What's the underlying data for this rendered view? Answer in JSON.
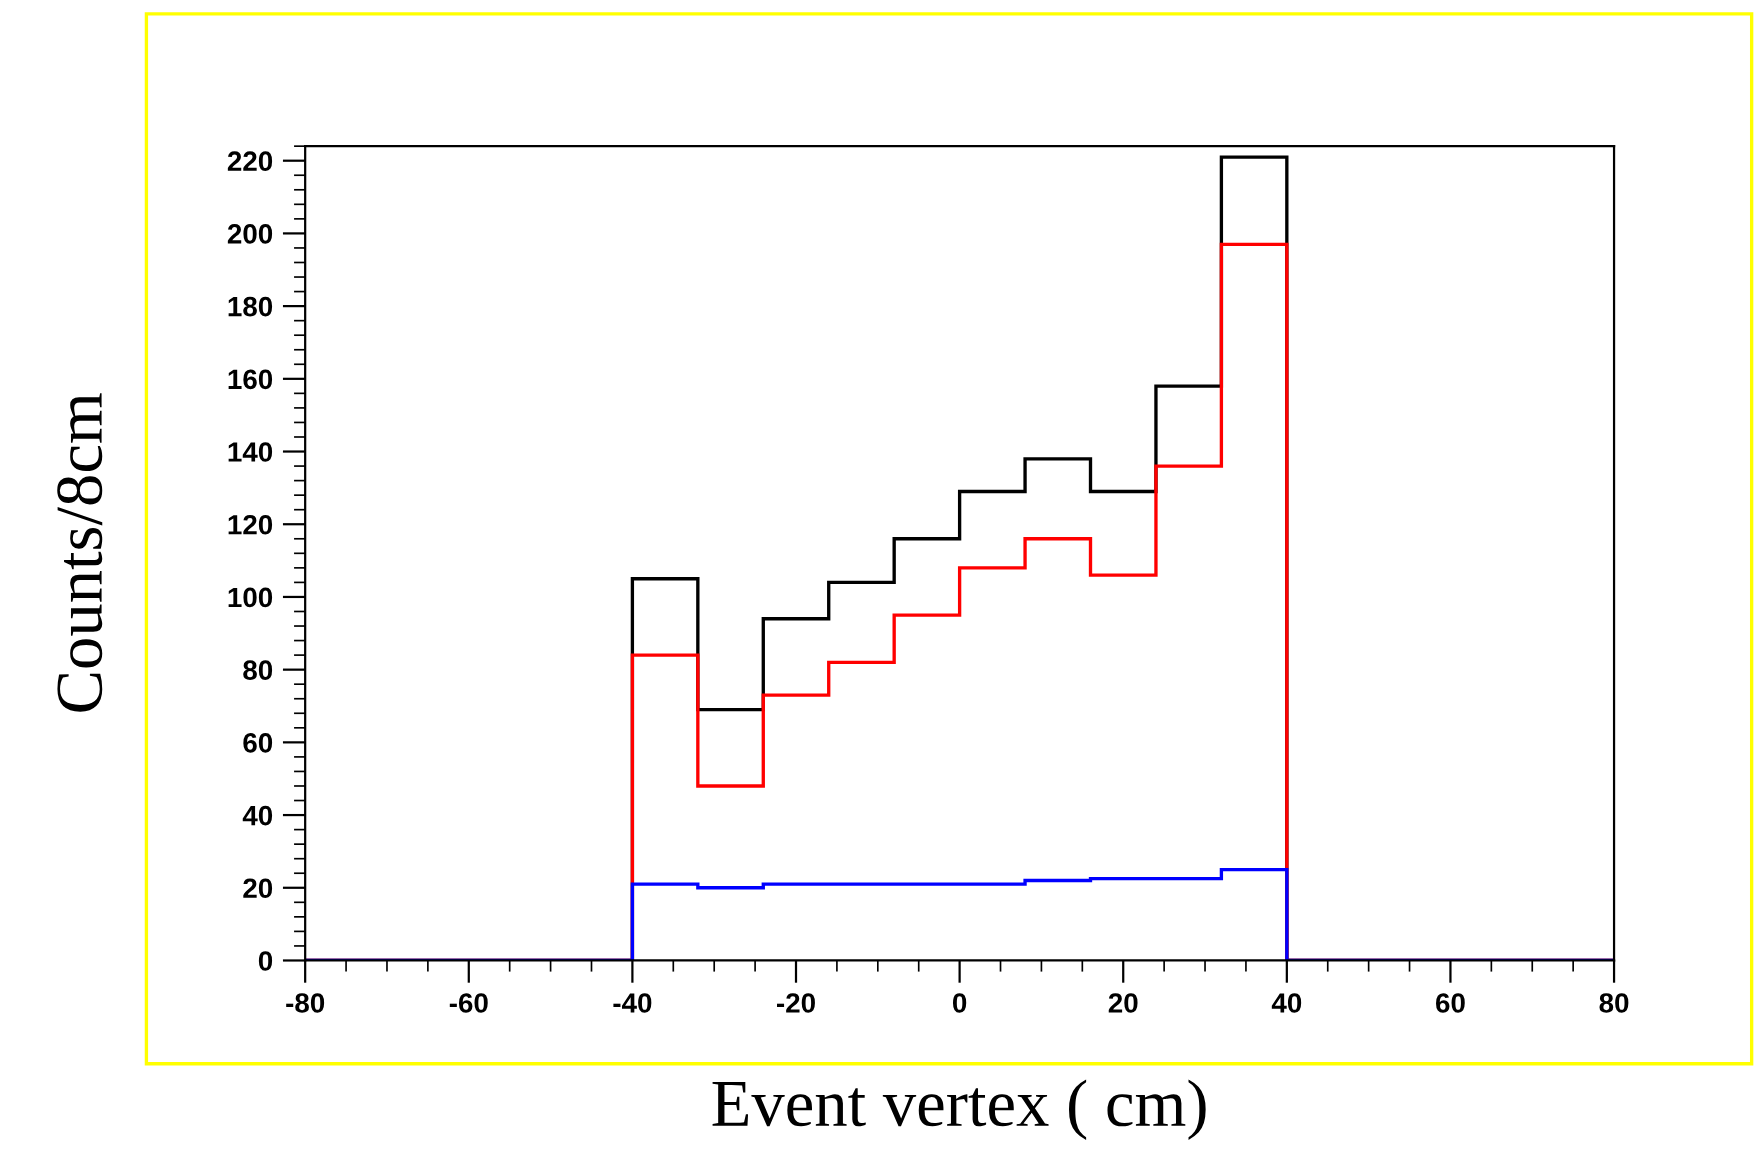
{
  "chart_data": {
    "type": "histogram",
    "xlabel": "Event vertex ( cm)",
    "ylabel": "Counts/8cm",
    "bins": [
      -80,
      -72,
      -64,
      -56,
      -48,
      -40,
      -32,
      -24,
      -16,
      -8,
      0,
      8,
      16,
      24,
      32,
      40,
      48,
      56,
      64,
      72,
      80
    ],
    "series": [
      {
        "color": "#000000",
        "values": [
          0,
          0,
          0,
          0,
          0,
          105,
          69,
          94,
          104,
          116,
          129,
          138,
          129,
          158,
          221,
          0,
          0,
          0,
          0,
          0
        ]
      },
      {
        "color": "#ff0000",
        "values": [
          0,
          0,
          0,
          0,
          0,
          84,
          48,
          73,
          82,
          95,
          108,
          116,
          106,
          136,
          197,
          0,
          0,
          0,
          0,
          0
        ]
      },
      {
        "color": "#0000ff",
        "values": [
          0,
          0,
          0,
          0,
          0,
          21,
          20,
          21,
          21,
          21,
          21,
          22,
          22.5,
          22.5,
          25,
          0,
          0,
          0,
          0,
          0
        ]
      }
    ],
    "xlim": [
      -80,
      80
    ],
    "ylim": [
      0,
      224
    ],
    "xticks": [
      -80,
      -60,
      -40,
      -20,
      0,
      20,
      40,
      60,
      80
    ],
    "yticks": [
      0,
      20,
      40,
      60,
      80,
      100,
      120,
      140,
      160,
      180,
      200,
      220
    ],
    "grid": false,
    "legend": false
  }
}
